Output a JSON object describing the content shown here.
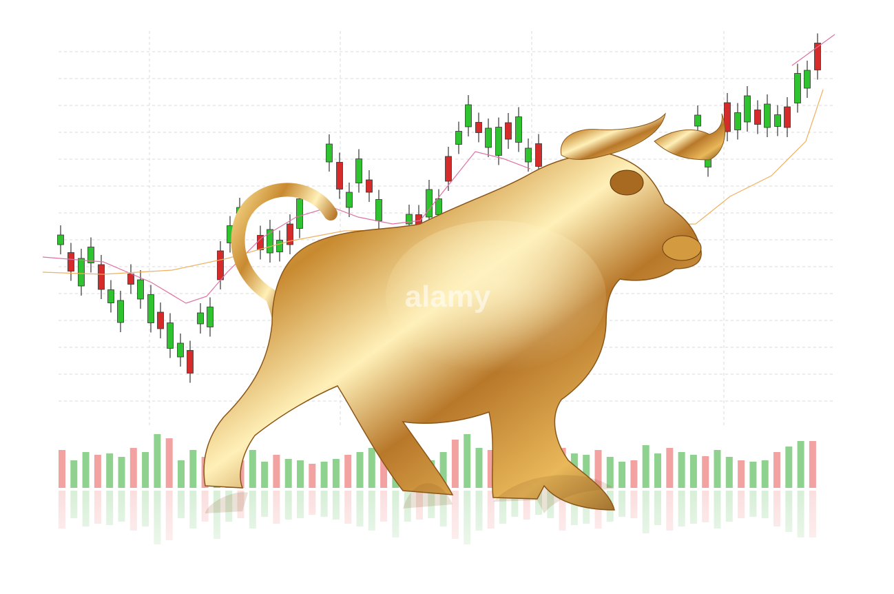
{
  "image": {
    "watermark": "alamy"
  }
}
